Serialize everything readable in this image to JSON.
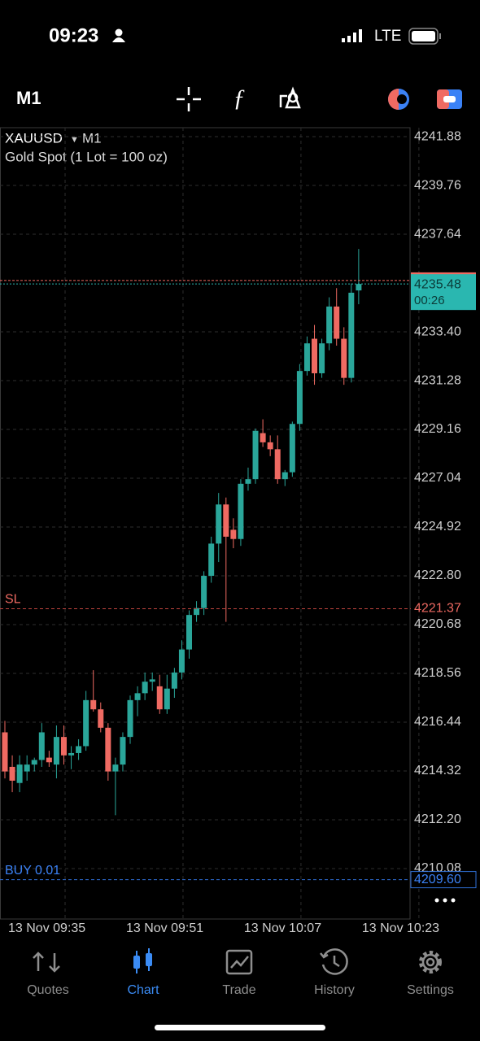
{
  "status_bar": {
    "time": "09:23",
    "network": "LTE"
  },
  "toolbar": {
    "timeframe": "M1"
  },
  "chart_data": {
    "type": "candlestick",
    "symbol": "XAUUSD",
    "timeframe": "M1",
    "description": "Gold Spot (1 Lot = 100 oz)",
    "categories": [
      "13 Nov 09:35",
      null,
      null,
      null,
      null,
      null,
      null,
      null,
      null,
      null,
      null,
      null,
      null,
      null,
      null,
      null,
      "13 Nov 09:51",
      null,
      null,
      null,
      null,
      null,
      null,
      null,
      null,
      null,
      null,
      null,
      null,
      null,
      null,
      null,
      "13 Nov 10:07",
      null,
      null,
      null,
      null,
      null,
      null,
      null,
      null,
      null,
      null,
      null,
      null,
      null,
      null,
      null,
      "13 Nov 10:23"
    ],
    "open": [
      4216.0,
      4214.5,
      4213.8,
      4214.3,
      4214.6,
      4214.8,
      4214.9,
      4214.6,
      4215.8,
      4215.0,
      4215.1,
      4215.4,
      4217.4,
      4217.0,
      4216.2,
      4214.3,
      4214.6,
      4215.8,
      4217.4,
      4217.7,
      4218.2,
      4218.0,
      4217.0,
      4217.9,
      4218.6,
      4219.6,
      4221.1,
      4221.4,
      4222.8,
      4224.2,
      4225.9,
      4224.8,
      4224.4,
      4226.8,
      4227.0,
      4229.0,
      4228.6,
      4228.3,
      4227.0,
      4227.3,
      4229.4,
      4231.7,
      4233.1,
      4231.6,
      4232.9,
      4234.5,
      4233.1,
      4231.4,
      4235.2
    ],
    "high": [
      4216.5,
      4215.0,
      4215.0,
      4215.0,
      4214.9,
      4216.4,
      4215.2,
      4216.3,
      4216.3,
      4215.4,
      4215.7,
      4217.8,
      4218.7,
      4217.3,
      4216.4,
      4214.9,
      4216.0,
      4217.6,
      4218.0,
      4218.6,
      4218.6,
      4218.5,
      4218.5,
      4218.8,
      4220.0,
      4221.3,
      4221.7,
      4223.0,
      4224.5,
      4226.4,
      4226.2,
      4225.3,
      4227.0,
      4227.5,
      4229.2,
      4229.6,
      4228.9,
      4228.9,
      4227.4,
      4229.5,
      4232.0,
      4233.2,
      4233.7,
      4233.1,
      4234.9,
      4235.3,
      4233.6,
      4235.5,
      4237.0
    ],
    "low": [
      4214.0,
      4213.4,
      4213.4,
      4213.9,
      4214.3,
      4214.5,
      4214.5,
      4214.0,
      4214.6,
      4214.4,
      4214.8,
      4215.2,
      4216.9,
      4216.0,
      4213.9,
      4212.4,
      4214.3,
      4215.5,
      4216.7,
      4217.4,
      4217.8,
      4216.8,
      4216.8,
      4217.5,
      4218.3,
      4219.2,
      4220.8,
      4221.1,
      4222.5,
      4223.4,
      4220.8,
      4224.0,
      4224.1,
      4226.5,
      4226.8,
      4228.4,
      4228.0,
      4226.8,
      4226.7,
      4227.1,
      4229.1,
      4231.5,
      4231.1,
      4231.4,
      4232.6,
      4232.8,
      4231.1,
      4231.2,
      4234.6
    ],
    "close": [
      4214.3,
      4213.9,
      4214.6,
      4214.6,
      4214.8,
      4216.0,
      4214.7,
      4215.8,
      4215.0,
      4215.1,
      4215.4,
      4217.4,
      4217.0,
      4216.2,
      4214.3,
      4214.6,
      4215.8,
      4217.4,
      4217.7,
      4218.2,
      4218.3,
      4217.0,
      4217.9,
      4218.6,
      4219.6,
      4221.1,
      4221.4,
      4222.8,
      4224.2,
      4225.9,
      4224.5,
      4224.4,
      4226.8,
      4227.0,
      4229.1,
      4228.6,
      4228.3,
      4227.0,
      4227.3,
      4229.4,
      4231.7,
      4232.9,
      4231.6,
      4232.9,
      4234.5,
      4233.1,
      4231.4,
      4235.1,
      4235.48
    ],
    "up_color": "#2aa69a",
    "down_color": "#ef6a62",
    "ylim": [
      4207.89,
      4242.27
    ],
    "yticks": [
      4241.88,
      4239.76,
      4237.64,
      {
        "value": 4233.4,
        "label": "4233.40"
      },
      4231.28,
      4229.16,
      4227.04,
      4224.92,
      {
        "value": 4222.8,
        "label": "4222.80"
      },
      4220.68,
      4218.56,
      4216.44,
      4214.32,
      {
        "value": 4212.2,
        "label": "4212.20"
      },
      4210.08
    ],
    "grid": true,
    "ask": 4235.63,
    "bid": 4235.48,
    "countdown": "00:26",
    "stop_loss": {
      "label": "SL",
      "value": 4221.37
    },
    "position": {
      "label": "BUY 0.01",
      "value": 4209.6,
      "value_label": "4209.60"
    }
  },
  "tab_bar": {
    "tabs": [
      "Quotes",
      "Chart",
      "Trade",
      "History",
      "Settings"
    ],
    "active": 1
  }
}
